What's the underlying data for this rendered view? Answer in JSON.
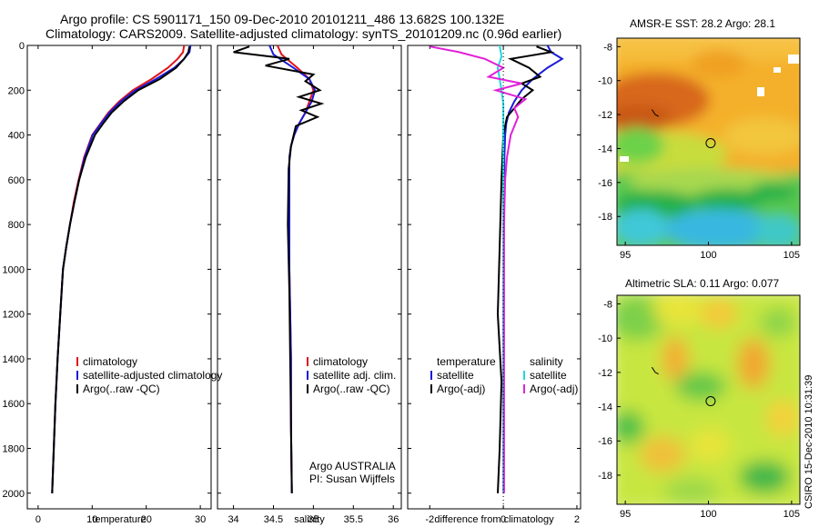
{
  "header": {
    "line1": "Argo profile: CS 5901171_150 09-Dec-2010 20101211_486 13.682S 100.132E",
    "line2": "Climatology: CARS2009. Satellite-adjusted climatology: synTS_20101209.nc (0.96d earlier)"
  },
  "credit": "CSIRO 15-Dec-2010 10:31:39",
  "colors": {
    "climatology": "#e0141e",
    "satellite": "#1a1ad8",
    "argo": "#000000",
    "sat_salinity": "#22d8e0",
    "argo_adj": "#e020d8"
  },
  "chart_data": [
    {
      "type": "line",
      "panel": "temperature",
      "xlabel": "temperature",
      "ylabel": "",
      "xlim": [
        -2,
        32
      ],
      "ylim": [
        0,
        2070
      ],
      "xticks": [
        0,
        10,
        20,
        30
      ],
      "yticks": [
        0,
        200,
        400,
        600,
        800,
        1000,
        1200,
        1400,
        1600,
        1800,
        2000
      ],
      "y_inverted": true,
      "legend": [
        "climatology",
        "satellite-adjusted climatology",
        "Argo(..raw -QC)"
      ],
      "series": [
        {
          "name": "climatology",
          "color": "#e0141e",
          "x": [
            27.0,
            26.8,
            25.8,
            24.0,
            21.0,
            17.5,
            15.0,
            13.0,
            11.5,
            10.0,
            8.5,
            7.5,
            6.6,
            5.9,
            5.2,
            4.6,
            4.1,
            3.6,
            3.2,
            2.9,
            2.6
          ],
          "y": [
            0,
            30,
            60,
            100,
            150,
            200,
            250,
            300,
            350,
            400,
            500,
            600,
            700,
            800,
            900,
            1000,
            1200,
            1400,
            1600,
            1800,
            2000
          ]
        },
        {
          "name": "satellite-adjusted climatology",
          "color": "#1a1ad8",
          "x": [
            28.2,
            28.0,
            27.0,
            25.2,
            21.8,
            18.0,
            15.3,
            13.2,
            11.6,
            10.1,
            8.6,
            7.6,
            6.7,
            5.9,
            5.2,
            4.6,
            4.1,
            3.6,
            3.2,
            2.9,
            2.6
          ],
          "y": [
            0,
            30,
            60,
            100,
            150,
            200,
            250,
            300,
            350,
            400,
            500,
            600,
            700,
            800,
            900,
            1000,
            1200,
            1400,
            1600,
            1800,
            2000
          ]
        },
        {
          "name": "Argo(..raw -QC)",
          "color": "#000000",
          "x": [
            28.0,
            27.8,
            27.0,
            25.5,
            22.5,
            18.5,
            15.8,
            13.6,
            12.0,
            10.5,
            8.8,
            7.6,
            6.7,
            5.9,
            5.2,
            4.6,
            4.1,
            3.6,
            3.2,
            2.9,
            2.6
          ],
          "y": [
            5,
            30,
            60,
            100,
            150,
            200,
            250,
            300,
            350,
            400,
            500,
            600,
            700,
            800,
            900,
            1000,
            1200,
            1400,
            1600,
            1800,
            2000
          ]
        }
      ]
    },
    {
      "type": "line",
      "panel": "salinity",
      "xlabel": "salinity",
      "xlim": [
        33.8,
        36.1
      ],
      "ylim": [
        0,
        2070
      ],
      "xticks": [
        34,
        34.5,
        35,
        35.5,
        36
      ],
      "y_inverted": true,
      "legend": [
        "climatology",
        "satellite adj. clim.",
        "Argo(..raw -QC)"
      ],
      "annotation": [
        "Argo AUSTRALIA",
        "PI: Susan Wijffels"
      ],
      "series": [
        {
          "name": "climatology",
          "color": "#e0141e",
          "x": [
            34.55,
            34.6,
            34.8,
            34.95,
            35.0,
            34.95,
            34.9,
            34.82,
            34.76,
            34.72,
            34.7,
            34.7,
            34.7,
            34.7,
            34.71,
            34.72,
            34.72,
            34.73
          ],
          "y": [
            0,
            40,
            100,
            150,
            200,
            250,
            300,
            350,
            400,
            450,
            500,
            600,
            800,
            1000,
            1200,
            1400,
            1700,
            2000
          ]
        },
        {
          "name": "satellite adj. clim.",
          "color": "#1a1ad8",
          "x": [
            34.45,
            34.5,
            34.75,
            34.95,
            35.02,
            34.98,
            34.9,
            34.82,
            34.76,
            34.72,
            34.7,
            34.7,
            34.7,
            34.7,
            34.71,
            34.72,
            34.72,
            34.73
          ],
          "y": [
            0,
            40,
            100,
            150,
            200,
            250,
            300,
            350,
            400,
            450,
            500,
            600,
            800,
            1000,
            1200,
            1400,
            1700,
            2000
          ]
        },
        {
          "name": "Argo(..raw -QC)",
          "color": "#000000",
          "x": [
            34.2,
            34.0,
            34.7,
            34.4,
            35.0,
            34.9,
            35.08,
            34.82,
            35.1,
            34.85,
            35.05,
            34.78,
            34.72,
            34.69,
            34.68,
            34.7,
            34.71,
            34.72,
            34.73
          ],
          "y": [
            5,
            30,
            60,
            90,
            130,
            160,
            200,
            230,
            260,
            290,
            320,
            360,
            450,
            550,
            800,
            1100,
            1400,
            1700,
            2000
          ]
        }
      ]
    },
    {
      "type": "line",
      "panel": "difference",
      "xlabel": "difference from climatology",
      "xlim": [
        -2.6,
        2.1
      ],
      "ylim": [
        0,
        2070
      ],
      "xticks": [
        -2,
        0,
        2
      ],
      "y_inverted": true,
      "legend_left": [
        "temperature",
        "satellite",
        "Argo(-adj)"
      ],
      "legend_right": [
        "salinity",
        "satellite",
        "Argo(-adj)"
      ],
      "series": [
        {
          "name": "temperature satellite",
          "color": "#1a1ad8",
          "x": [
            1.2,
            1.3,
            1.6,
            1.2,
            0.8,
            0.5,
            0.3,
            0.15,
            0.08,
            0.05,
            0.03,
            0.02,
            0.01,
            0.0,
            0.0,
            0.0,
            0.0
          ],
          "y": [
            0,
            30,
            60,
            100,
            150,
            200,
            250,
            300,
            350,
            400,
            500,
            700,
            900,
            1200,
            1500,
            1800,
            2000
          ]
        },
        {
          "name": "temperature Argo(-adj)",
          "color": "#000000",
          "x": [
            0.9,
            1.3,
            0.2,
            0.7,
            1.0,
            0.5,
            0.8,
            0.5,
            0.3,
            0.1,
            0.0,
            -0.05,
            -0.1,
            -0.15,
            -0.05,
            -0.1,
            -0.15
          ],
          "y": [
            5,
            30,
            60,
            100,
            140,
            170,
            200,
            240,
            280,
            320,
            400,
            600,
            900,
            1200,
            1500,
            1800,
            2000
          ]
        },
        {
          "name": "salinity satellite",
          "color": "#22d8e0",
          "x": [
            -0.1,
            -0.05,
            -0.15,
            -0.1,
            -0.05,
            0.0,
            0.0,
            0.0,
            0.0,
            0.0,
            0.0,
            0.0
          ],
          "y": [
            0,
            50,
            100,
            150,
            200,
            260,
            400,
            700,
            1000,
            1400,
            1700,
            2000
          ]
        },
        {
          "name": "salinity Argo(-adj)",
          "color": "#e020d8",
          "x": [
            -2.0,
            -1.2,
            -0.5,
            0.0,
            -0.4,
            0.5,
            -0.2,
            0.6,
            0.3,
            0.4,
            0.2,
            0.1,
            0.05,
            0.02,
            0.02,
            0.02,
            0.02
          ],
          "y": [
            5,
            30,
            60,
            100,
            140,
            170,
            200,
            240,
            280,
            320,
            400,
            500,
            600,
            800,
            1200,
            1600,
            2000
          ]
        }
      ]
    },
    {
      "type": "heatmap",
      "panel": "sst-map",
      "title": "AMSR-E SST: 28.2 Argo: 28.1",
      "xlim": [
        94.5,
        105.5
      ],
      "ylim": [
        -19.7,
        -7.5
      ],
      "xticks": [
        95,
        100,
        105
      ],
      "yticks": [
        -8,
        -10,
        -12,
        -14,
        -16,
        -18
      ],
      "marker": {
        "lon": 100.132,
        "lat": -13.682
      }
    },
    {
      "type": "heatmap",
      "panel": "sla-map",
      "title": "Altimetric SLA: 0.11 Argo: 0.077",
      "xlim": [
        94.5,
        105.5
      ],
      "ylim": [
        -19.7,
        -7.5
      ],
      "xticks": [
        95,
        100,
        105
      ],
      "yticks": [
        -8,
        -10,
        -12,
        -14,
        -16,
        -18
      ],
      "marker": {
        "lon": 100.132,
        "lat": -13.682
      }
    }
  ]
}
